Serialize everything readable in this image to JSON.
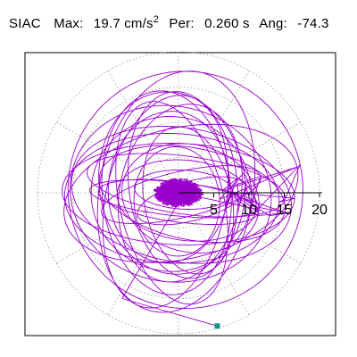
{
  "header": {
    "station": "SIAC",
    "max_label": "Max:",
    "max_value": "19.7 cm/s",
    "max_unit_exp": "2",
    "per_label": "Per:",
    "per_value": "0.260 s",
    "ang_label": "Ang:",
    "ang_value": "-74.3"
  },
  "chart_data": {
    "type": "polar-particle-motion",
    "title": "",
    "radial_range": [
      0,
      20
    ],
    "radial_ticks": [
      "5",
      "10",
      "15",
      "20"
    ],
    "radial_tick_values": [
      5,
      10,
      15,
      20
    ],
    "grid": "dotted concentric circles and radial spokes every 30 degrees",
    "max_amplitude": 19.7,
    "period_s": 0.26,
    "angle_deg": -74.3,
    "trace_color": "#9900cc",
    "marker_color": "#119988",
    "marker": {
      "description": "end point of trace",
      "x": 5.5,
      "y": -18.9
    },
    "trace_envelope": {
      "x_range_approx": [
        -16,
        16
      ],
      "y_range_approx": [
        -19,
        19
      ],
      "dense_core_radius_approx": 3
    }
  }
}
